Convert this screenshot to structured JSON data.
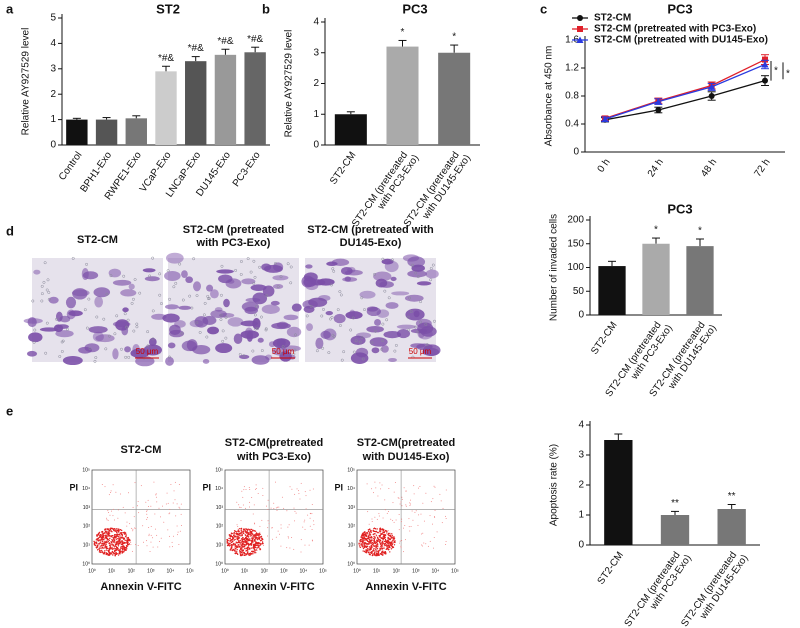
{
  "panel_letters": [
    "a",
    "b",
    "c",
    "d",
    "e"
  ],
  "micrographs": [
    {
      "title": [
        "ST2-CM"
      ],
      "scale": "50 μm"
    },
    {
      "title": [
        "ST2-CM (pretreated",
        "with PC3-Exo)"
      ],
      "scale": "50 μm"
    },
    {
      "title": [
        "ST2-CM (pretreated with",
        "DU145-Exo)"
      ],
      "scale": "50 μm"
    }
  ],
  "flow": {
    "ylabel": "PI",
    "xlabel": "Annexin V-FITC",
    "ticks": [
      "10⁰",
      "10¹",
      "10²",
      "10³",
      "10⁴",
      "10⁵"
    ],
    "plots": [
      {
        "title": [
          "ST2-CM"
        ]
      },
      {
        "title": [
          "ST2-CM(pretreated",
          "with PC3-Exo)"
        ]
      },
      {
        "title": [
          "ST2-CM(pretreated",
          "with DU145-Exo)"
        ]
      }
    ]
  },
  "chart_data": [
    {
      "type": "bar",
      "title": "ST2",
      "ylabel": "Relative  AY927529  level",
      "categories": [
        [
          "Control"
        ],
        [
          "BPH1-Exo"
        ],
        [
          "RWPE1-Exo"
        ],
        [
          "VCaP-Exo"
        ],
        [
          "LNCaP-Exo"
        ],
        [
          "DU145-Exo"
        ],
        [
          "PC3-Exo"
        ]
      ],
      "values": [
        1.0,
        1.0,
        1.05,
        2.9,
        3.3,
        3.55,
        3.65
      ],
      "errors": [
        0.05,
        0.08,
        0.1,
        0.2,
        0.18,
        0.22,
        0.2
      ],
      "colors": [
        "#111111",
        "#555555",
        "#777777",
        "#cccccc",
        "#555555",
        "#999999",
        "#666666"
      ],
      "annotations": [
        null,
        null,
        null,
        "*#&",
        "*#&",
        "*#&",
        "*#&"
      ],
      "ylim": [
        0,
        5
      ],
      "yticks": [
        0,
        1,
        2,
        3,
        4,
        5
      ]
    },
    {
      "type": "bar",
      "title": "PC3",
      "ylabel": "Relative AY927529 level",
      "categories": [
        [
          "ST2-CM"
        ],
        [
          "ST2-CM (pretreated",
          "with PC3-Exo)"
        ],
        [
          "ST2-CM (pretreated",
          "with DU145-Exo)"
        ]
      ],
      "values": [
        1.0,
        3.2,
        3.0
      ],
      "errors": [
        0.08,
        0.2,
        0.25
      ],
      "colors": [
        "#111111",
        "#aaaaaa",
        "#777777"
      ],
      "annotations": [
        null,
        "*",
        "*"
      ],
      "ylim": [
        0,
        4
      ],
      "yticks": [
        0,
        1,
        2,
        3,
        4
      ]
    },
    {
      "type": "line",
      "title": "PC3",
      "ylabel": "Absorbance at 450 nm",
      "categories": [
        [
          "0 h"
        ],
        [
          "24 h"
        ],
        [
          "48 h"
        ],
        [
          "72 h"
        ]
      ],
      "series": [
        {
          "name": "ST2-CM",
          "color": "#111111",
          "marker": "circle",
          "values": [
            0.46,
            0.6,
            0.8,
            1.02
          ],
          "errors": [
            0.03,
            0.04,
            0.06,
            0.07
          ]
        },
        {
          "name": "ST2-CM (pretreated with PC3-Exo)",
          "color": "#e0202a",
          "marker": "square",
          "values": [
            0.48,
            0.73,
            0.95,
            1.32
          ],
          "errors": [
            0.03,
            0.04,
            0.05,
            0.07
          ]
        },
        {
          "name": "ST2-CM (pretreated with DU145-Exo)",
          "color": "#2a3adf",
          "marker": "triangle",
          "values": [
            0.47,
            0.72,
            0.93,
            1.25
          ],
          "errors": [
            0.03,
            0.04,
            0.05,
            0.06
          ]
        }
      ],
      "annotations": [
        "*",
        "*"
      ],
      "ylim": [
        0,
        1.6
      ],
      "yticks": [
        0,
        0.4,
        0.8,
        1.2,
        1.6
      ]
    },
    {
      "type": "bar",
      "title": "PC3",
      "ylabel": "Number of invaded cells",
      "categories": [
        [
          "ST2-CM"
        ],
        [
          "ST2-CM (pretreated",
          "with PC3-Exo)"
        ],
        [
          "ST2-CM (pretreated",
          "with DU145-Exo)"
        ]
      ],
      "values": [
        103,
        150,
        145
      ],
      "errors": [
        10,
        12,
        15
      ],
      "colors": [
        "#111111",
        "#aaaaaa",
        "#777777"
      ],
      "annotations": [
        null,
        "*",
        "*"
      ],
      "ylim": [
        0,
        200
      ],
      "yticks": [
        0,
        50,
        100,
        150,
        200
      ]
    },
    {
      "type": "bar",
      "ylabel": "Apoptosis rate (%)",
      "categories": [
        [
          "ST2-CM"
        ],
        [
          "ST2-CM (pretreated",
          "with PC3-Exo)"
        ],
        [
          "ST2-CM (pretreated",
          "with DU145-Exo)"
        ]
      ],
      "values": [
        3.5,
        1.0,
        1.2
      ],
      "errors": [
        0.2,
        0.12,
        0.15
      ],
      "colors": [
        "#111111",
        "#777777",
        "#777777"
      ],
      "annotations": [
        null,
        "**",
        "**"
      ],
      "ylim": [
        0,
        4
      ],
      "yticks": [
        0,
        1,
        2,
        3,
        4
      ]
    }
  ]
}
